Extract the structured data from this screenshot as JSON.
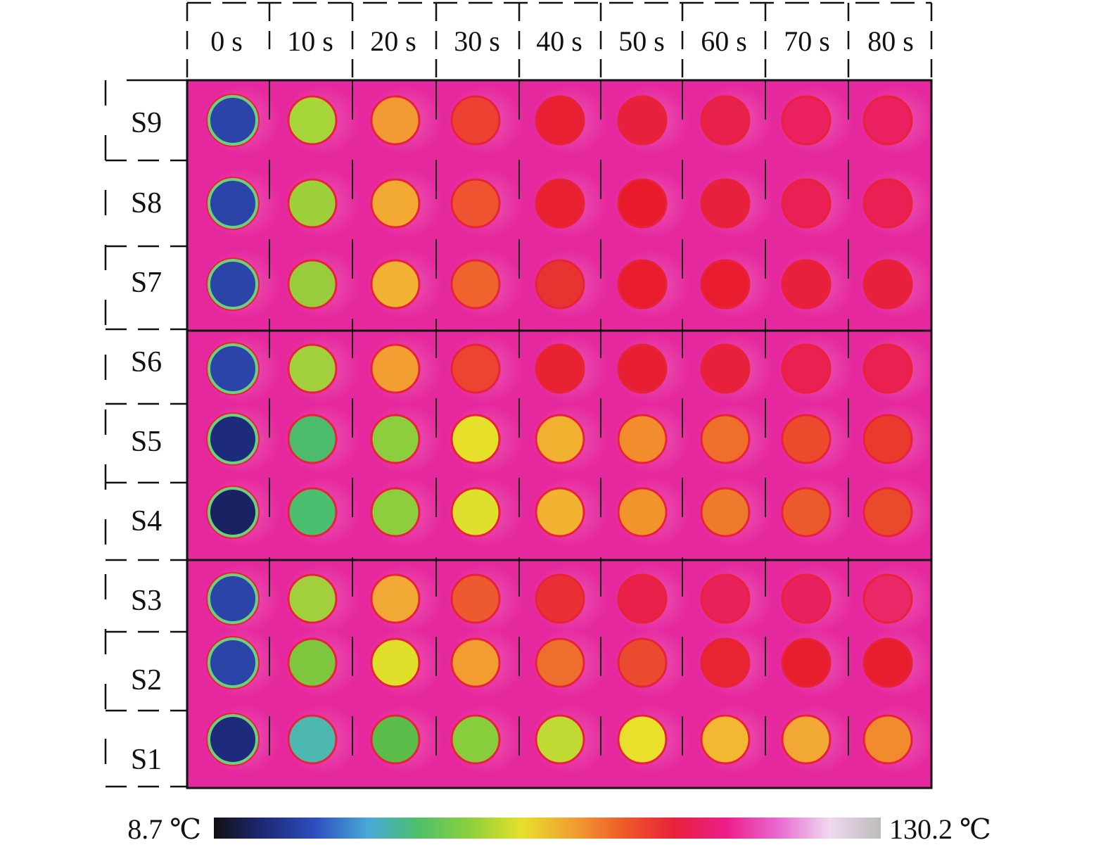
{
  "time_labels": [
    "0 s",
    "10 s",
    "20 s",
    "30 s",
    "40 s",
    "50 s",
    "60 s",
    "70 s",
    "80 s"
  ],
  "sample_labels": [
    "S9",
    "S8",
    "S7",
    "S6",
    "S5",
    "S4",
    "S3",
    "S2",
    "S1"
  ],
  "colorbar": {
    "min_label": "8.7 ℃",
    "max_label": "130.2 ℃",
    "stops": [
      "#111111",
      "#1e2a7a",
      "#2f4fc0",
      "#48a8d8",
      "#4fc06a",
      "#8cd03c",
      "#e6e02a",
      "#f0a030",
      "#ee5a28",
      "#e8203c",
      "#ec1e8c",
      "#e86ad0",
      "#f0d8f0",
      "#bcbcbc"
    ]
  },
  "colors": {
    "background": "#e6289e",
    "outline": "#e8223a"
  },
  "spots": [
    [
      "#2a44a8",
      "#a6d63a",
      "#f29a34",
      "#ec4030",
      "#e82032",
      "#e8203c",
      "#e8204c",
      "#ea2060",
      "#ea2060"
    ],
    [
      "#2a44a8",
      "#9ed03c",
      "#f2aa32",
      "#ee5430",
      "#e82030",
      "#e81a2c",
      "#e8203c",
      "#ea2054",
      "#ea2054"
    ],
    [
      "#2a44a8",
      "#98cc3c",
      "#f2b234",
      "#ee642c",
      "#e83430",
      "#e81c2c",
      "#e81c2e",
      "#e8203c",
      "#e8203c"
    ],
    [
      "#2a44a8",
      "#a2d03c",
      "#f29e32",
      "#ec4430",
      "#e82230",
      "#e81e32",
      "#e8203c",
      "#ea2050",
      "#ea2050"
    ],
    [
      "#1e2a7a",
      "#4cbc6c",
      "#8cce3e",
      "#e6e02a",
      "#f2b030",
      "#f28c2c",
      "#ee6e2c",
      "#ec4a2c",
      "#ea3a2e"
    ],
    [
      "#1a2264",
      "#4cbe70",
      "#8cce3e",
      "#dfe02e",
      "#f2b232",
      "#f2942c",
      "#ee7a2c",
      "#ec5a2c",
      "#ea4a2c"
    ],
    [
      "#2a44a8",
      "#a2d03c",
      "#f2a834",
      "#ee5a30",
      "#e83034",
      "#e8204a",
      "#e8205c",
      "#e82060",
      "#ea2868"
    ],
    [
      "#2a44a8",
      "#7ec63e",
      "#e0e02a",
      "#f29c32",
      "#ee6e2e",
      "#ea4a2e",
      "#e82430",
      "#e81e2e",
      "#e81e2e"
    ],
    [
      "#1e2a7a",
      "#4cb8b0",
      "#5cbe4a",
      "#88ce3c",
      "#c0da34",
      "#e8e02a",
      "#f2b832",
      "#f2a834",
      "#f28a2e"
    ]
  ]
}
